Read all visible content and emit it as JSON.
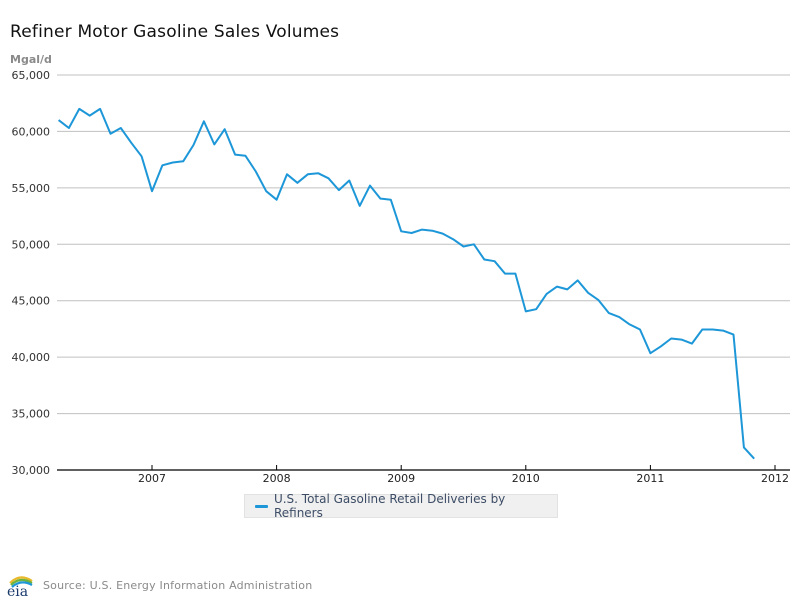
{
  "header": {
    "title": "Refiner Motor Gasoline Sales Volumes",
    "unit_label": "Mgal/d"
  },
  "footer": {
    "logo_text": "eia",
    "source": "Source: U.S. Energy Information Administration"
  },
  "colors": {
    "series": "#1d97d8",
    "grid": "#c0c0c0",
    "axis": "#000000"
  },
  "chart_data": {
    "type": "line",
    "title": "Refiner Motor Gasoline Sales Volumes",
    "xlabel": "",
    "ylabel": "Mgal/d",
    "ylim": [
      30000,
      65000
    ],
    "yticks": [
      30000,
      35000,
      40000,
      45000,
      50000,
      55000,
      60000,
      65000
    ],
    "ytick_labels": [
      "30,000",
      "35,000",
      "40,000",
      "45,000",
      "50,000",
      "55,000",
      "60,000",
      "65,000"
    ],
    "xlim": [
      "2006-04",
      "2012-01"
    ],
    "xticks": [
      "2007",
      "2008",
      "2009",
      "2010",
      "2011",
      "2012"
    ],
    "grid": "horizontal",
    "legend_position": "bottom-center",
    "series": [
      {
        "name": "U.S. Total Gasoline Retail Deliveries by Refiners",
        "start": "2006-04",
        "frequency": "monthly",
        "values": [
          61000,
          60300,
          62000,
          61400,
          62000,
          59800,
          60300,
          59000,
          57800,
          54700,
          57000,
          57250,
          57350,
          58800,
          60900,
          58850,
          60200,
          57950,
          57850,
          56450,
          54700,
          53950,
          56200,
          55450,
          56200,
          56300,
          55850,
          54800,
          55650,
          53400,
          55200,
          54050,
          53950,
          51150,
          51000,
          51300,
          51200,
          50950,
          50450,
          49800,
          50000,
          48650,
          48500,
          47400,
          47400,
          44050,
          44250,
          45600,
          46250,
          46000,
          46800,
          45700,
          45050,
          43900,
          43550,
          42900,
          42450,
          40350,
          40950,
          41650,
          41550,
          41200,
          42450,
          42450,
          42350,
          42000,
          32000,
          31000
        ]
      }
    ]
  }
}
